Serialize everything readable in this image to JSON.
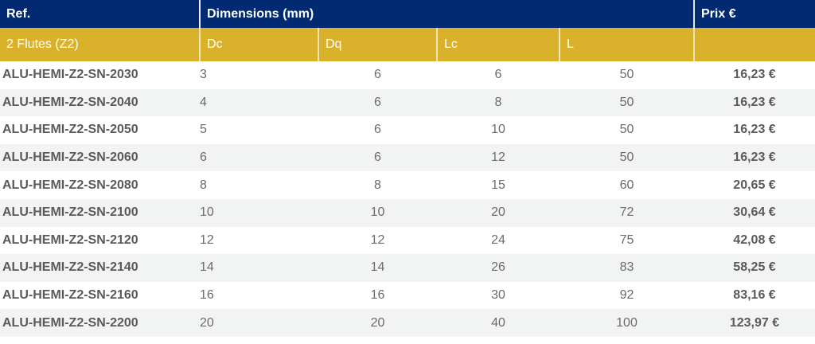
{
  "header": {
    "ref": "Ref.",
    "dimensions": "Dimensions (mm)",
    "price": "Prix €"
  },
  "subheader": {
    "group": "2 Flutes (Z2)",
    "dc": "Dc",
    "dq": "Dq",
    "lc": "Lc",
    "l": "L"
  },
  "colors": {
    "header_bg": "#022a72",
    "subheader_bg": "#d9b12b",
    "row_alt": "#f2f3f3"
  },
  "rows": [
    {
      "ref": "ALU-HEMI-Z2-SN-2030",
      "dc": "3",
      "dq": "6",
      "lc": "6",
      "l": "50",
      "price": "16,23 €"
    },
    {
      "ref": "ALU-HEMI-Z2-SN-2040",
      "dc": "4",
      "dq": "6",
      "lc": "8",
      "l": "50",
      "price": "16,23 €"
    },
    {
      "ref": "ALU-HEMI-Z2-SN-2050",
      "dc": "5",
      "dq": "6",
      "lc": "10",
      "l": "50",
      "price": "16,23 €"
    },
    {
      "ref": "ALU-HEMI-Z2-SN-2060",
      "dc": "6",
      "dq": "6",
      "lc": "12",
      "l": "50",
      "price": "16,23 €"
    },
    {
      "ref": "ALU-HEMI-Z2-SN-2080",
      "dc": "8",
      "dq": "8",
      "lc": "15",
      "l": "60",
      "price": "20,65 €"
    },
    {
      "ref": "ALU-HEMI-Z2-SN-2100",
      "dc": "10",
      "dq": "10",
      "lc": "20",
      "l": "72",
      "price": "30,64 €"
    },
    {
      "ref": "ALU-HEMI-Z2-SN-2120",
      "dc": "12",
      "dq": "12",
      "lc": "24",
      "l": "75",
      "price": "42,08 €"
    },
    {
      "ref": "ALU-HEMI-Z2-SN-2140",
      "dc": "14",
      "dq": "14",
      "lc": "26",
      "l": "83",
      "price": "58,25 €"
    },
    {
      "ref": "ALU-HEMI-Z2-SN-2160",
      "dc": "16",
      "dq": "16",
      "lc": "30",
      "l": "92",
      "price": "83,16 €"
    },
    {
      "ref": "ALU-HEMI-Z2-SN-2200",
      "dc": "20",
      "dq": "20",
      "lc": "40",
      "l": "100",
      "price": "123,97 €"
    }
  ]
}
